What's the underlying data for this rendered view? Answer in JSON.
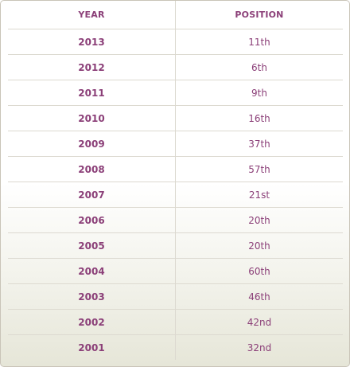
{
  "table": {
    "headers": {
      "year": "YEAR",
      "position": "POSITION"
    },
    "rows": [
      {
        "year": "2013",
        "position": "11th"
      },
      {
        "year": "2012",
        "position": "6th"
      },
      {
        "year": "2011",
        "position": "9th"
      },
      {
        "year": "2010",
        "position": "16th"
      },
      {
        "year": "2009",
        "position": "37th"
      },
      {
        "year": "2008",
        "position": "57th"
      },
      {
        "year": "2007",
        "position": "21st"
      },
      {
        "year": "2006",
        "position": "20th"
      },
      {
        "year": "2005",
        "position": "20th"
      },
      {
        "year": "2004",
        "position": "60th"
      },
      {
        "year": "2003",
        "position": "46th"
      },
      {
        "year": "2002",
        "position": "42nd"
      },
      {
        "year": "2001",
        "position": "32nd"
      }
    ]
  },
  "colors": {
    "text_accent": "#8b3f78",
    "border": "#dcd9d0",
    "panel_border": "#c9c4b8"
  }
}
